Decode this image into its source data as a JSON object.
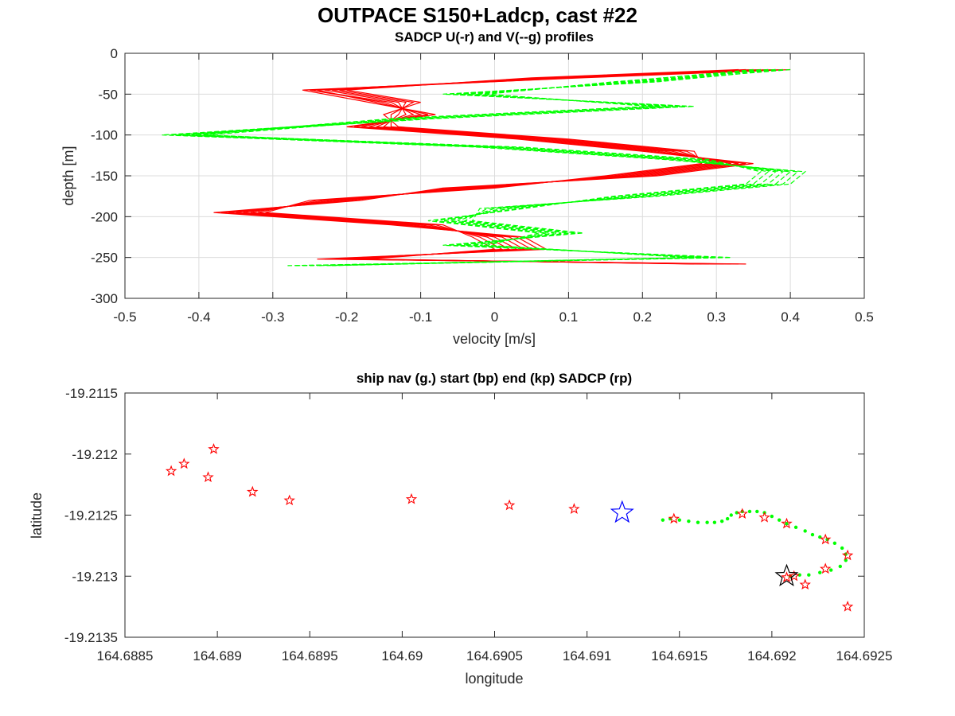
{
  "figure": {
    "title": "OUTPACE S150+Ladcp, cast #22"
  },
  "chart_data": [
    {
      "type": "line",
      "title": "SADCP U(-r) and V(--g) profiles",
      "xlabel": "velocity [m/s]",
      "ylabel": "depth [m]",
      "xlim": [
        -0.5,
        0.5
      ],
      "ylim": [
        -300,
        0
      ],
      "xticks": [
        -0.5,
        -0.4,
        -0.3,
        -0.2,
        -0.1,
        0,
        0.1,
        0.2,
        0.3,
        0.4,
        0.5
      ],
      "xtick_labels": [
        "-0.5",
        "-0.4",
        "-0.3",
        "-0.2",
        "-0.1",
        "0",
        "0.1",
        "0.2",
        "0.3",
        "0.4",
        "0.5"
      ],
      "yticks": [
        -300,
        -250,
        -200,
        -150,
        -100,
        -50,
        0
      ],
      "ytick_labels": [
        "-300",
        "-250",
        "-200",
        "-150",
        "-100",
        "-50",
        "0"
      ],
      "grid": true,
      "series": [
        {
          "color": "#ff0000",
          "line_style": "solid",
          "depth": [
            -20,
            -30,
            -45,
            -60,
            -75,
            -90,
            -105,
            -120,
            -135,
            -150,
            -165,
            -180,
            -195,
            -210,
            -225,
            -240,
            -252,
            -258
          ],
          "profiles": [
            [
              0.38,
              0.1,
              -0.25,
              -0.15,
              -0.1,
              -0.18,
              0.05,
              0.22,
              0.33,
              0.2,
              -0.05,
              -0.2,
              -0.36,
              -0.12,
              0.02,
              0.05,
              -0.22,
              0.32
            ],
            [
              0.36,
              0.08,
              -0.23,
              -0.13,
              -0.12,
              -0.16,
              0.07,
              0.24,
              0.31,
              0.18,
              -0.03,
              -0.22,
              -0.34,
              -0.1,
              0.0,
              0.03,
              -0.2,
              0.3
            ],
            [
              0.4,
              0.12,
              -0.26,
              -0.17,
              -0.08,
              -0.2,
              0.03,
              0.2,
              0.35,
              0.22,
              -0.07,
              -0.18,
              -0.38,
              -0.14,
              0.04,
              0.07,
              -0.24,
              0.34
            ],
            [
              0.34,
              0.06,
              -0.21,
              -0.11,
              -0.14,
              -0.14,
              0.09,
              0.26,
              0.29,
              0.16,
              -0.01,
              -0.24,
              -0.32,
              -0.08,
              -0.02,
              0.01,
              -0.18,
              0.28
            ],
            [
              0.37,
              0.11,
              -0.24,
              -0.16,
              -0.09,
              -0.19,
              0.04,
              0.21,
              0.34,
              0.21,
              -0.06,
              -0.19,
              -0.37,
              -0.13,
              0.03,
              0.06,
              -0.23,
              0.33
            ],
            [
              0.35,
              0.07,
              -0.22,
              -0.12,
              -0.13,
              -0.15,
              0.08,
              0.25,
              0.3,
              0.17,
              -0.02,
              -0.23,
              -0.33,
              -0.09,
              -0.01,
              0.02,
              -0.19,
              0.29
            ],
            [
              0.39,
              0.09,
              -0.25,
              -0.14,
              -0.11,
              -0.17,
              0.06,
              0.23,
              0.32,
              0.19,
              -0.04,
              -0.21,
              -0.35,
              -0.11,
              0.01,
              0.04,
              -0.21,
              0.31
            ],
            [
              0.33,
              0.05,
              -0.2,
              -0.1,
              -0.15,
              -0.13,
              0.1,
              0.27,
              0.28,
              0.15,
              0.0,
              -0.25,
              -0.31,
              -0.07,
              -0.03,
              0.0,
              -0.17,
              0.27
            ]
          ]
        },
        {
          "color": "#00ff00",
          "line_style": "dashed",
          "depth": [
            -20,
            -35,
            -50,
            -65,
            -80,
            -100,
            -115,
            -130,
            -145,
            -160,
            -175,
            -190,
            -205,
            -220,
            -235,
            -250,
            -260
          ],
          "profiles": [
            [
              0.4,
              0.2,
              -0.05,
              0.25,
              -0.1,
              -0.45,
              0.0,
              0.25,
              0.4,
              0.38,
              0.2,
              0.0,
              -0.05,
              0.1,
              -0.05,
              0.3,
              -0.28
            ],
            [
              0.38,
              0.18,
              -0.03,
              0.23,
              -0.12,
              -0.43,
              0.02,
              0.27,
              0.38,
              0.36,
              0.18,
              0.02,
              -0.07,
              0.08,
              -0.03,
              0.28,
              -0.26
            ],
            [
              0.39,
              0.22,
              -0.07,
              0.27,
              -0.08,
              -0.44,
              -0.02,
              0.23,
              0.42,
              0.4,
              0.22,
              -0.02,
              -0.03,
              0.12,
              -0.07,
              0.32,
              -0.27
            ],
            [
              0.37,
              0.16,
              -0.01,
              0.21,
              -0.14,
              -0.41,
              0.04,
              0.29,
              0.36,
              0.34,
              0.16,
              0.04,
              -0.09,
              0.06,
              -0.01,
              0.26,
              -0.24
            ],
            [
              0.36,
              0.21,
              -0.06,
              0.26,
              -0.09,
              -0.42,
              -0.01,
              0.24,
              0.41,
              0.39,
              0.21,
              -0.01,
              -0.04,
              0.11,
              -0.06,
              0.31,
              -0.25
            ],
            [
              0.35,
              0.17,
              -0.02,
              0.22,
              -0.13,
              -0.4,
              0.03,
              0.28,
              0.37,
              0.35,
              0.17,
              0.03,
              -0.08,
              0.07,
              -0.02,
              0.27,
              -0.23
            ],
            [
              0.38,
              0.19,
              -0.04,
              0.24,
              -0.11,
              -0.39,
              0.01,
              0.26,
              0.39,
              0.37,
              0.19,
              0.01,
              -0.06,
              0.09,
              -0.04,
              0.29,
              -0.22
            ]
          ]
        }
      ]
    },
    {
      "type": "scatter",
      "title": "ship nav (g.) start (bp) end (kp) SADCP (rp)",
      "xlabel": "longitude",
      "ylabel": "latitude",
      "xlim": [
        164.6885,
        164.6925
      ],
      "ylim": [
        -19.2135,
        -19.2115
      ],
      "xticks": [
        164.6885,
        164.689,
        164.6895,
        164.69,
        164.6905,
        164.691,
        164.6915,
        164.692,
        164.6925
      ],
      "xtick_labels": [
        "164.6885",
        "164.689",
        "164.6895",
        "164.69",
        "164.6905",
        "164.691",
        "164.6915",
        "164.692",
        "164.6925"
      ],
      "yticks": [
        -19.2135,
        -19.213,
        -19.2125,
        -19.212,
        -19.2115
      ],
      "ytick_labels": [
        "-19.2135",
        "-19.213",
        "-19.2125",
        "-19.212",
        "-19.2115"
      ],
      "grid": false,
      "series": [
        {
          "color": "#00ff00",
          "marker": "dot",
          "points": [
            [
              164.69141,
              -19.21254
            ],
            [
              164.69145,
              -19.21253
            ],
            [
              164.6915,
              -19.21254
            ],
            [
              164.69155,
              -19.21255
            ],
            [
              164.6916,
              -19.21256
            ],
            [
              164.69165,
              -19.21256
            ],
            [
              164.69169,
              -19.21256
            ],
            [
              164.69173,
              -19.21255
            ],
            [
              164.69176,
              -19.21253
            ],
            [
              164.69178,
              -19.2125
            ],
            [
              164.69181,
              -19.21248
            ],
            [
              164.69184,
              -19.21247
            ],
            [
              164.69188,
              -19.21247
            ],
            [
              164.69192,
              -19.21247
            ],
            [
              164.69196,
              -19.21248
            ],
            [
              164.692,
              -19.21251
            ],
            [
              164.69204,
              -19.21254
            ],
            [
              164.69208,
              -19.21257
            ],
            [
              164.69213,
              -19.2126
            ],
            [
              164.69218,
              -19.21263
            ],
            [
              164.69222,
              -19.21266
            ],
            [
              164.69226,
              -19.21268
            ],
            [
              164.6923,
              -19.2127
            ],
            [
              164.69234,
              -19.21273
            ],
            [
              164.69238,
              -19.21277
            ],
            [
              164.6924,
              -19.21282
            ],
            [
              164.6924,
              -19.21287
            ],
            [
              164.69237,
              -19.21292
            ],
            [
              164.69232,
              -19.21295
            ],
            [
              164.69226,
              -19.21297
            ],
            [
              164.6922,
              -19.21299
            ],
            [
              164.69215,
              -19.21299
            ],
            [
              164.6921,
              -19.213
            ]
          ]
        },
        {
          "color": "#ff0000",
          "marker": "star",
          "points": [
            [
              164.68875,
              -19.21214
            ],
            [
              164.68882,
              -19.21208
            ],
            [
              164.68898,
              -19.21196
            ],
            [
              164.68895,
              -19.21219
            ],
            [
              164.68919,
              -19.21231
            ],
            [
              164.68939,
              -19.21238
            ],
            [
              164.69005,
              -19.21237
            ],
            [
              164.69058,
              -19.21242
            ],
            [
              164.69093,
              -19.21245
            ],
            [
              164.69147,
              -19.21253
            ],
            [
              164.69184,
              -19.21249
            ],
            [
              164.69196,
              -19.21252
            ],
            [
              164.69208,
              -19.21257
            ],
            [
              164.69229,
              -19.2127
            ],
            [
              164.69241,
              -19.21283
            ],
            [
              164.69229,
              -19.21294
            ],
            [
              164.69218,
              -19.21307
            ],
            [
              164.69212,
              -19.213
            ],
            [
              164.69208,
              -19.21301
            ],
            [
              164.69241,
              -19.21325
            ]
          ]
        },
        {
          "color": "#0000ff",
          "marker": "star-large",
          "points": [
            [
              164.69119,
              -19.21248
            ]
          ]
        },
        {
          "color": "#000000",
          "marker": "star-large",
          "points": [
            [
              164.69208,
              -19.213
            ]
          ]
        }
      ]
    }
  ]
}
